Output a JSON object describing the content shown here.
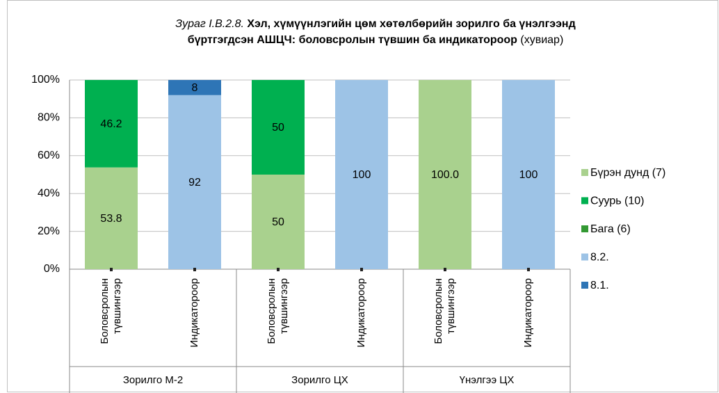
{
  "chart_data": {
    "type": "stacked_bar",
    "title_prefix": "Зураг I.B.2.8.",
    "title": [
      "Хэл, хүмүүнлэгийн цөм хөтөлбөрийн зорилго ба үнэлгээнд",
      "бүртгэгдсэн АШЦЧ: боловсролын түвшин ба индикатороор"
    ],
    "title_suffix": "(хувиар)",
    "categories": [
      [
        "Боловсролын",
        "түвшингээр"
      ],
      [
        "Индикатороор"
      ],
      [
        "Боловсролын",
        "түвшингээр"
      ],
      [
        "Индикатороор"
      ],
      [
        "Боловсролын",
        "түвшингээр"
      ],
      [
        "Индикатороор"
      ]
    ],
    "groups": [
      "Зорилго М-2",
      "Зорилго ЦХ",
      "Үнэлгээ ЦХ"
    ],
    "series": [
      {
        "name": "Бүрэн дунд (7)",
        "color": "#a9d18e",
        "values": [
          53.8,
          null,
          50,
          null,
          100,
          null
        ],
        "value_labels": [
          "53.8",
          null,
          "50",
          null,
          "100.0",
          null
        ]
      },
      {
        "name": "Суурь (10)",
        "color": "#00b050",
        "values": [
          46.2,
          null,
          50,
          null,
          null,
          null
        ]
      },
      {
        "name": "Бага (6)",
        "color": "#339933",
        "values": [
          null,
          null,
          null,
          null,
          null,
          null
        ]
      },
      {
        "name": "8.2.",
        "color": "#9dc3e6",
        "values": [
          null,
          92,
          null,
          100,
          null,
          100
        ]
      },
      {
        "name": "8.1.",
        "color": "#2e75b6",
        "values": [
          null,
          8,
          null,
          null,
          null,
          null
        ]
      }
    ],
    "ylim": [
      0,
      100
    ],
    "yticks": [
      {
        "value": 0,
        "label": "0%"
      },
      {
        "value": 20,
        "label": "20%"
      },
      {
        "value": 40,
        "label": "40%"
      },
      {
        "value": 60,
        "label": "60%"
      },
      {
        "value": 80,
        "label": "80%"
      },
      {
        "value": 100,
        "label": "100%"
      }
    ],
    "grid": true,
    "legend": "right"
  }
}
